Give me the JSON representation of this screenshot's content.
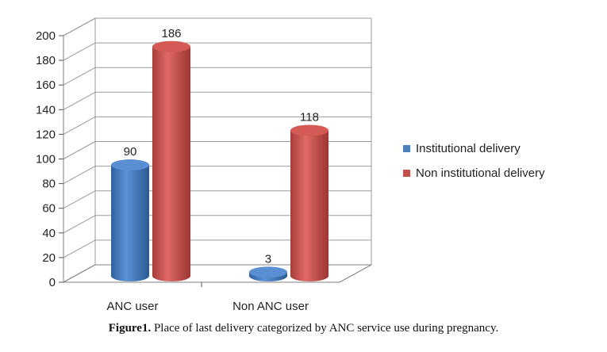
{
  "chart_data": {
    "type": "bar",
    "categories": [
      "ANC user",
      "Non ANC user"
    ],
    "series": [
      {
        "name": "Institutional delivery",
        "values": [
          90,
          3
        ],
        "color": "#4f81bd"
      },
      {
        "name": "Non institutional delivery",
        "values": [
          186,
          118
        ],
        "color": "#c0504d"
      }
    ],
    "ylim": [
      0,
      200
    ],
    "yticks": [
      0,
      20,
      40,
      60,
      80,
      100,
      120,
      140,
      160,
      180,
      200
    ],
    "grid": true,
    "legend_position": "right",
    "data_labels": true,
    "style": "3d-cylinder"
  },
  "caption": {
    "label": "Figure1.",
    "text": " Place of last delivery categorized by ANC service use during pregnancy."
  }
}
